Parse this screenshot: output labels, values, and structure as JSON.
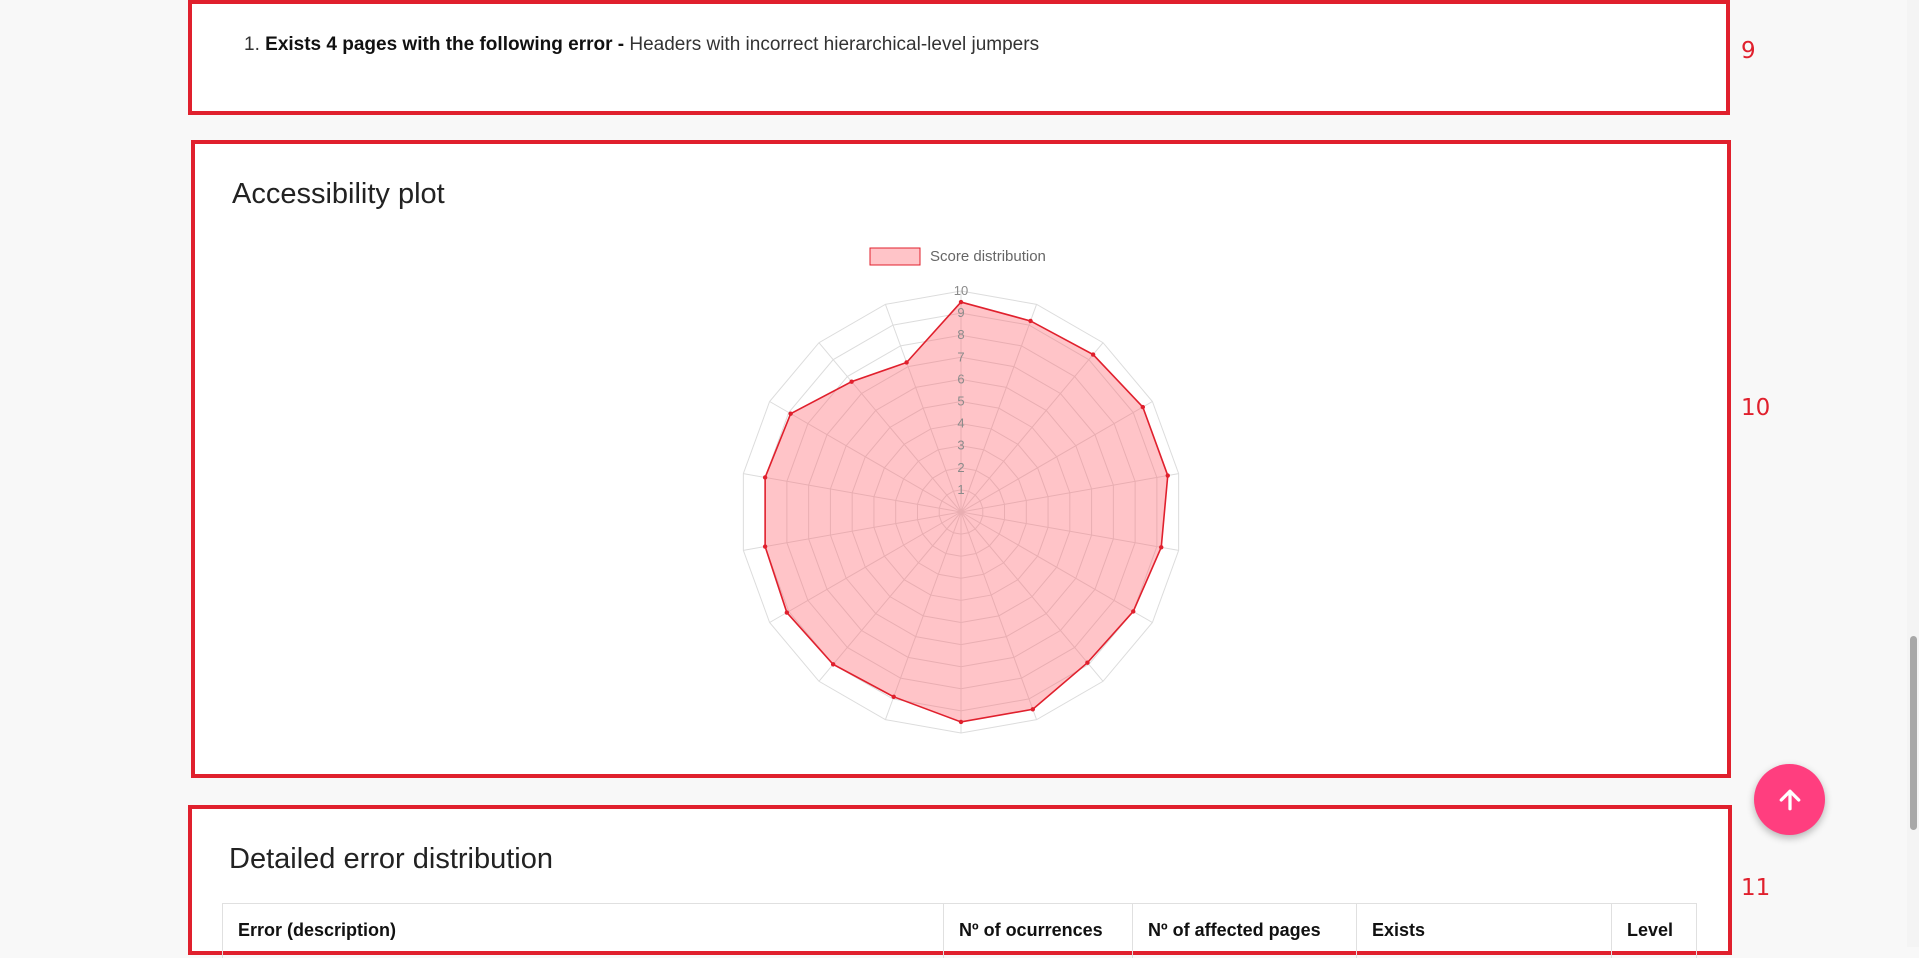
{
  "sections": {
    "s9": {
      "number": "9",
      "items": [
        {
          "index": "1.",
          "bold": "Exists 4 pages with the following error -",
          "text": "Headers with incorrect hierarchical-level jumpers"
        }
      ]
    },
    "s10": {
      "number": "10",
      "title": "Accessibility plot"
    },
    "s11": {
      "number": "11",
      "title": "Detailed error distribution",
      "columns": [
        "Error (description)",
        "Nº of ocurrences",
        "Nº of affected pages",
        "Exists",
        "Level"
      ]
    }
  },
  "chart_data": {
    "type": "radar",
    "legend": "Score distribution",
    "legend_position": "top",
    "r_min": 0,
    "r_max": 10,
    "ticks": [
      "1",
      "2",
      "3",
      "4",
      "5",
      "6",
      "7",
      "8",
      "9",
      "10"
    ],
    "series": [
      {
        "name": "Score distribution",
        "values": [
          9.5,
          9.2,
          9.3,
          9.5,
          9.5,
          9.2,
          9.0,
          8.9,
          9.5,
          9.5,
          8.9,
          9.0,
          9.1,
          9.0,
          9.0,
          8.9,
          7.7,
          7.2
        ],
        "color": "#e0202d",
        "fill": "rgba(255, 99, 110, 0.38)"
      }
    ]
  },
  "colors": {
    "annotation": "#e0202d",
    "fab": "#ff3e7f"
  },
  "icons": {
    "fab": "arrow-up-icon"
  }
}
